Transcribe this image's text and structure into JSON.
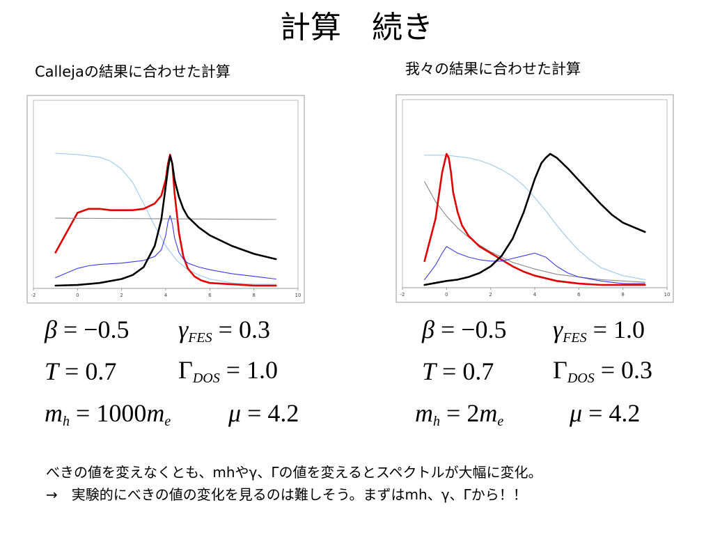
{
  "slide": {
    "title": "計算　続き",
    "left_subtitle": "Callejaの結果に合わせた計算",
    "right_subtitle": "我々の結果に合わせた計算",
    "footer_line1": "べきの値を変えなくとも、mhやγ、Γの値を変えるとスペクトルが大幅に変化。",
    "footer_line2": "→　実験的にべきの値の変化を見るのは難しそう。まずはmh、γ、Γから！！"
  },
  "left_params": {
    "beta": "−0.5",
    "T": "0.7",
    "mh": "1000",
    "gamma_fes": "0.3",
    "Gamma_dos": "1.0",
    "mu": "4.2"
  },
  "right_params": {
    "beta": "−0.5",
    "T": "0.7",
    "mh": "2",
    "gamma_fes": "1.0",
    "Gamma_dos": "0.3",
    "mu": "4.2"
  },
  "chart_data": [
    {
      "type": "line",
      "xlim": [
        -2,
        10
      ],
      "ylim": [
        0,
        1
      ],
      "x_ticks": [
        "-2",
        "0",
        "2",
        "4",
        "6",
        "8",
        "10"
      ],
      "colors": {
        "black": "#000000",
        "red": "#e00000",
        "blue": "#3a3ae0",
        "lightblue": "#9cc8ee",
        "gray": "#888888"
      },
      "series": [
        {
          "color": "lightblue",
          "x": [
            -1,
            0,
            1,
            1.5,
            2,
            2.5,
            3,
            3.5,
            4,
            4.5,
            5,
            5.5,
            6,
            7,
            8,
            9
          ],
          "y": [
            1.0,
            0.99,
            0.97,
            0.94,
            0.88,
            0.78,
            0.62,
            0.45,
            0.3,
            0.19,
            0.12,
            0.08,
            0.05,
            0.02,
            0.01,
            0.01
          ]
        },
        {
          "color": "red",
          "x": [
            -1,
            -0.5,
            0,
            0.5,
            1,
            1.5,
            2,
            2.5,
            3,
            3.5,
            3.8,
            4.0,
            4.1,
            4.2,
            4.3,
            4.4,
            4.6,
            4.8,
            5,
            5.3,
            5.6,
            6,
            7,
            8,
            9
          ],
          "y": [
            0.25,
            0.4,
            0.55,
            0.58,
            0.58,
            0.57,
            0.57,
            0.57,
            0.58,
            0.62,
            0.68,
            0.8,
            0.92,
            0.99,
            0.92,
            0.7,
            0.4,
            0.22,
            0.13,
            0.07,
            0.04,
            0.02,
            0.01,
            0.0,
            0.0
          ]
        },
        {
          "color": "gray",
          "x": [
            -1,
            9
          ],
          "y": [
            0.51,
            0.5
          ]
        },
        {
          "color": "blue",
          "x": [
            -1,
            0,
            0.5,
            1,
            2,
            3,
            3.5,
            3.8,
            4.0,
            4.1,
            4.2,
            4.3,
            4.4,
            4.6,
            4.8,
            5,
            5.5,
            6,
            7,
            8,
            9
          ],
          "y": [
            0.06,
            0.13,
            0.15,
            0.16,
            0.17,
            0.19,
            0.22,
            0.27,
            0.38,
            0.48,
            0.53,
            0.47,
            0.36,
            0.25,
            0.2,
            0.17,
            0.14,
            0.12,
            0.09,
            0.07,
            0.05
          ]
        },
        {
          "color": "black",
          "x": [
            -1,
            0,
            1,
            2,
            2.5,
            3,
            3.5,
            3.8,
            4.0,
            4.1,
            4.2,
            4.3,
            4.4,
            4.6,
            4.8,
            5,
            5.5,
            6,
            7,
            8,
            9
          ],
          "y": [
            0.0,
            0.005,
            0.02,
            0.05,
            0.08,
            0.14,
            0.3,
            0.5,
            0.75,
            0.88,
            0.98,
            0.92,
            0.8,
            0.67,
            0.58,
            0.52,
            0.44,
            0.38,
            0.3,
            0.24,
            0.2
          ]
        }
      ]
    },
    {
      "type": "line",
      "xlim": [
        -2,
        10
      ],
      "ylim": [
        0,
        1
      ],
      "x_ticks": [
        "-2",
        "0",
        "2",
        "4",
        "6",
        "8",
        "10"
      ],
      "colors": {
        "black": "#000000",
        "red": "#e00000",
        "blue": "#3a3ae0",
        "lightblue": "#9cc8ee",
        "gray": "#888888"
      },
      "series": [
        {
          "color": "lightblue",
          "x": [
            -1,
            0,
            1,
            1.5,
            2,
            2.5,
            3,
            3.5,
            4,
            4.5,
            5,
            5.5,
            6,
            6.5,
            7,
            8,
            9
          ],
          "y": [
            0.98,
            0.98,
            0.96,
            0.94,
            0.91,
            0.87,
            0.82,
            0.75,
            0.66,
            0.56,
            0.45,
            0.35,
            0.26,
            0.19,
            0.13,
            0.07,
            0.04
          ]
        },
        {
          "color": "gray",
          "x": [
            -1,
            -0.5,
            0,
            0.5,
            1,
            1.5,
            2,
            3,
            4,
            5,
            6,
            7,
            8,
            9
          ],
          "y": [
            0.78,
            0.63,
            0.52,
            0.43,
            0.36,
            0.3,
            0.25,
            0.17,
            0.12,
            0.08,
            0.06,
            0.04,
            0.03,
            0.02
          ]
        },
        {
          "color": "red",
          "x": [
            -1,
            -0.5,
            -0.2,
            0,
            0.1,
            0.2,
            0.3,
            0.5,
            0.7,
            1,
            1.5,
            2,
            2.5,
            3,
            3.5,
            4,
            5,
            6,
            7,
            8,
            9
          ],
          "y": [
            0.18,
            0.5,
            0.85,
            0.99,
            0.96,
            0.85,
            0.7,
            0.55,
            0.45,
            0.37,
            0.29,
            0.24,
            0.19,
            0.14,
            0.1,
            0.07,
            0.03,
            0.01,
            0.0,
            0.0,
            0.0
          ]
        },
        {
          "color": "blue",
          "x": [
            -1,
            -0.5,
            -0.2,
            0,
            0.2,
            0.5,
            1,
            1.5,
            2,
            2.5,
            3,
            3.5,
            4,
            4.5,
            5,
            5.5,
            6,
            7,
            8,
            9
          ],
          "y": [
            0.04,
            0.15,
            0.24,
            0.29,
            0.27,
            0.24,
            0.21,
            0.19,
            0.18,
            0.18,
            0.2,
            0.22,
            0.24,
            0.21,
            0.14,
            0.09,
            0.06,
            0.03,
            0.01,
            0.01
          ]
        },
        {
          "color": "black",
          "x": [
            -1,
            0,
            0.5,
            1,
            1.5,
            2,
            2.5,
            3,
            3.5,
            4,
            4.3,
            4.5,
            4.7,
            5,
            5.5,
            6,
            6.5,
            7,
            7.5,
            8,
            9
          ],
          "y": [
            0.0,
            0.03,
            0.04,
            0.06,
            0.09,
            0.14,
            0.22,
            0.35,
            0.55,
            0.8,
            0.92,
            0.96,
            0.99,
            0.96,
            0.88,
            0.79,
            0.7,
            0.61,
            0.53,
            0.47,
            0.4
          ]
        }
      ]
    }
  ]
}
